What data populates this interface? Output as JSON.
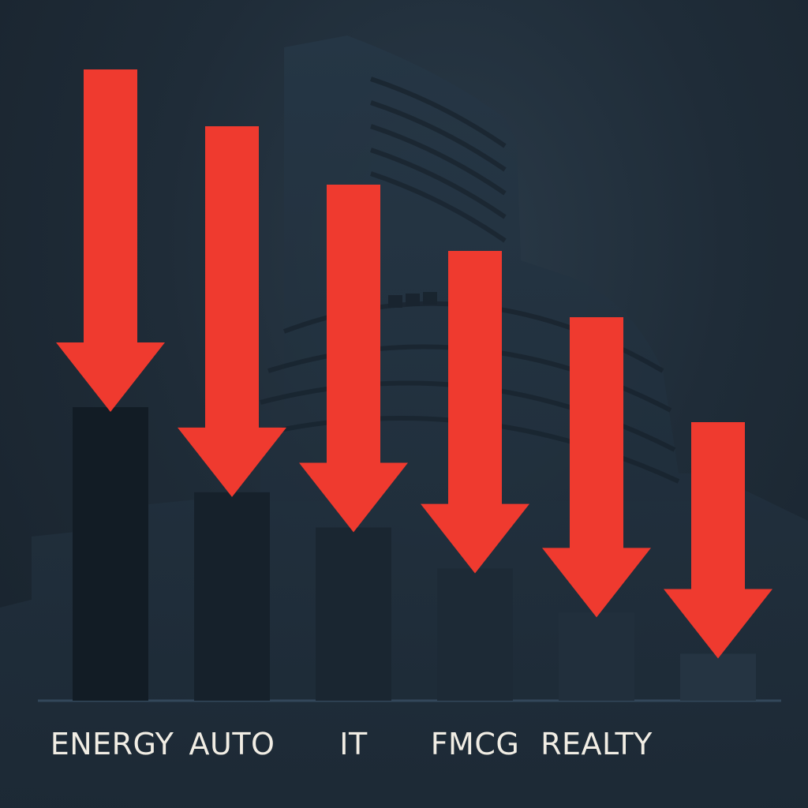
{
  "chart_data": {
    "type": "bar",
    "title": "",
    "xlabel": "",
    "ylabel": "",
    "categories": [
      "ENERGY",
      "AUTO",
      "IT",
      "FMCG",
      "REALTY",
      ""
    ],
    "values": [
      100,
      71,
      59,
      45,
      30,
      16
    ],
    "ylim": [
      0,
      100
    ],
    "grid": false,
    "legend": "none",
    "annotation": "downward arrow above each bar",
    "colors": {
      "bar": "#121c25",
      "bar_light": "#253442",
      "arrow": "#ef3a2f",
      "label": "#f1ede4",
      "baseline": "#33475a",
      "background": "#1f2c38"
    }
  }
}
